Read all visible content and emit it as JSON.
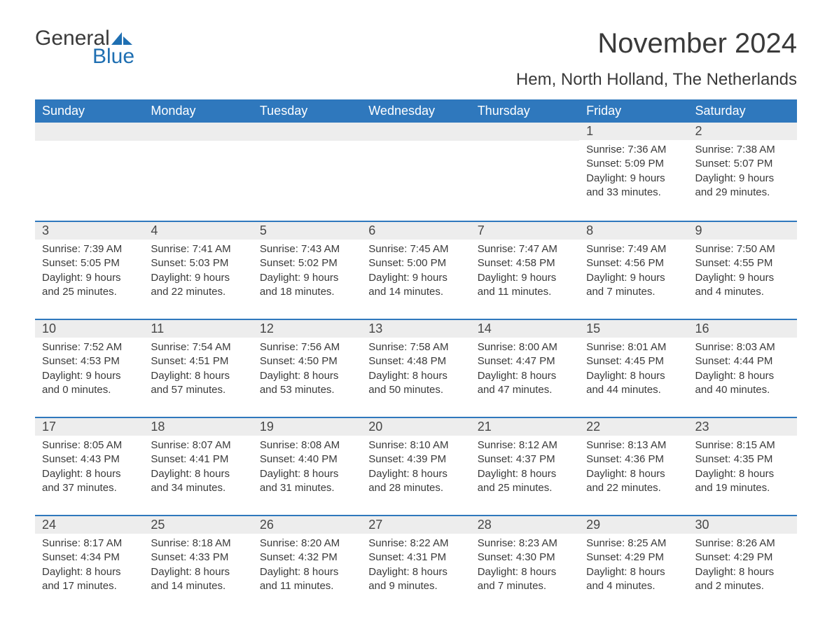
{
  "logo": {
    "word1": "General",
    "word2": "Blue",
    "icon_color": "#1f6fb2"
  },
  "title": "November 2024",
  "subtitle": "Hem, North Holland, The Netherlands",
  "colors": {
    "header_bg": "#2f78bd",
    "header_text": "#ffffff",
    "daynum_bg": "#ededed",
    "rule": "#2f78bd",
    "text": "#3a3a3a"
  },
  "day_headers": [
    "Sunday",
    "Monday",
    "Tuesday",
    "Wednesday",
    "Thursday",
    "Friday",
    "Saturday"
  ],
  "weeks": [
    [
      {
        "day": "",
        "lines": []
      },
      {
        "day": "",
        "lines": []
      },
      {
        "day": "",
        "lines": []
      },
      {
        "day": "",
        "lines": []
      },
      {
        "day": "",
        "lines": []
      },
      {
        "day": "1",
        "lines": [
          "Sunrise: 7:36 AM",
          "Sunset: 5:09 PM",
          "Daylight: 9 hours and 33 minutes."
        ]
      },
      {
        "day": "2",
        "lines": [
          "Sunrise: 7:38 AM",
          "Sunset: 5:07 PM",
          "Daylight: 9 hours and 29 minutes."
        ]
      }
    ],
    [
      {
        "day": "3",
        "lines": [
          "Sunrise: 7:39 AM",
          "Sunset: 5:05 PM",
          "Daylight: 9 hours and 25 minutes."
        ]
      },
      {
        "day": "4",
        "lines": [
          "Sunrise: 7:41 AM",
          "Sunset: 5:03 PM",
          "Daylight: 9 hours and 22 minutes."
        ]
      },
      {
        "day": "5",
        "lines": [
          "Sunrise: 7:43 AM",
          "Sunset: 5:02 PM",
          "Daylight: 9 hours and 18 minutes."
        ]
      },
      {
        "day": "6",
        "lines": [
          "Sunrise: 7:45 AM",
          "Sunset: 5:00 PM",
          "Daylight: 9 hours and 14 minutes."
        ]
      },
      {
        "day": "7",
        "lines": [
          "Sunrise: 7:47 AM",
          "Sunset: 4:58 PM",
          "Daylight: 9 hours and 11 minutes."
        ]
      },
      {
        "day": "8",
        "lines": [
          "Sunrise: 7:49 AM",
          "Sunset: 4:56 PM",
          "Daylight: 9 hours and 7 minutes."
        ]
      },
      {
        "day": "9",
        "lines": [
          "Sunrise: 7:50 AM",
          "Sunset: 4:55 PM",
          "Daylight: 9 hours and 4 minutes."
        ]
      }
    ],
    [
      {
        "day": "10",
        "lines": [
          "Sunrise: 7:52 AM",
          "Sunset: 4:53 PM",
          "Daylight: 9 hours and 0 minutes."
        ]
      },
      {
        "day": "11",
        "lines": [
          "Sunrise: 7:54 AM",
          "Sunset: 4:51 PM",
          "Daylight: 8 hours and 57 minutes."
        ]
      },
      {
        "day": "12",
        "lines": [
          "Sunrise: 7:56 AM",
          "Sunset: 4:50 PM",
          "Daylight: 8 hours and 53 minutes."
        ]
      },
      {
        "day": "13",
        "lines": [
          "Sunrise: 7:58 AM",
          "Sunset: 4:48 PM",
          "Daylight: 8 hours and 50 minutes."
        ]
      },
      {
        "day": "14",
        "lines": [
          "Sunrise: 8:00 AM",
          "Sunset: 4:47 PM",
          "Daylight: 8 hours and 47 minutes."
        ]
      },
      {
        "day": "15",
        "lines": [
          "Sunrise: 8:01 AM",
          "Sunset: 4:45 PM",
          "Daylight: 8 hours and 44 minutes."
        ]
      },
      {
        "day": "16",
        "lines": [
          "Sunrise: 8:03 AM",
          "Sunset: 4:44 PM",
          "Daylight: 8 hours and 40 minutes."
        ]
      }
    ],
    [
      {
        "day": "17",
        "lines": [
          "Sunrise: 8:05 AM",
          "Sunset: 4:43 PM",
          "Daylight: 8 hours and 37 minutes."
        ]
      },
      {
        "day": "18",
        "lines": [
          "Sunrise: 8:07 AM",
          "Sunset: 4:41 PM",
          "Daylight: 8 hours and 34 minutes."
        ]
      },
      {
        "day": "19",
        "lines": [
          "Sunrise: 8:08 AM",
          "Sunset: 4:40 PM",
          "Daylight: 8 hours and 31 minutes."
        ]
      },
      {
        "day": "20",
        "lines": [
          "Sunrise: 8:10 AM",
          "Sunset: 4:39 PM",
          "Daylight: 8 hours and 28 minutes."
        ]
      },
      {
        "day": "21",
        "lines": [
          "Sunrise: 8:12 AM",
          "Sunset: 4:37 PM",
          "Daylight: 8 hours and 25 minutes."
        ]
      },
      {
        "day": "22",
        "lines": [
          "Sunrise: 8:13 AM",
          "Sunset: 4:36 PM",
          "Daylight: 8 hours and 22 minutes."
        ]
      },
      {
        "day": "23",
        "lines": [
          "Sunrise: 8:15 AM",
          "Sunset: 4:35 PM",
          "Daylight: 8 hours and 19 minutes."
        ]
      }
    ],
    [
      {
        "day": "24",
        "lines": [
          "Sunrise: 8:17 AM",
          "Sunset: 4:34 PM",
          "Daylight: 8 hours and 17 minutes."
        ]
      },
      {
        "day": "25",
        "lines": [
          "Sunrise: 8:18 AM",
          "Sunset: 4:33 PM",
          "Daylight: 8 hours and 14 minutes."
        ]
      },
      {
        "day": "26",
        "lines": [
          "Sunrise: 8:20 AM",
          "Sunset: 4:32 PM",
          "Daylight: 8 hours and 11 minutes."
        ]
      },
      {
        "day": "27",
        "lines": [
          "Sunrise: 8:22 AM",
          "Sunset: 4:31 PM",
          "Daylight: 8 hours and 9 minutes."
        ]
      },
      {
        "day": "28",
        "lines": [
          "Sunrise: 8:23 AM",
          "Sunset: 4:30 PM",
          "Daylight: 8 hours and 7 minutes."
        ]
      },
      {
        "day": "29",
        "lines": [
          "Sunrise: 8:25 AM",
          "Sunset: 4:29 PM",
          "Daylight: 8 hours and 4 minutes."
        ]
      },
      {
        "day": "30",
        "lines": [
          "Sunrise: 8:26 AM",
          "Sunset: 4:29 PM",
          "Daylight: 8 hours and 2 minutes."
        ]
      }
    ]
  ]
}
